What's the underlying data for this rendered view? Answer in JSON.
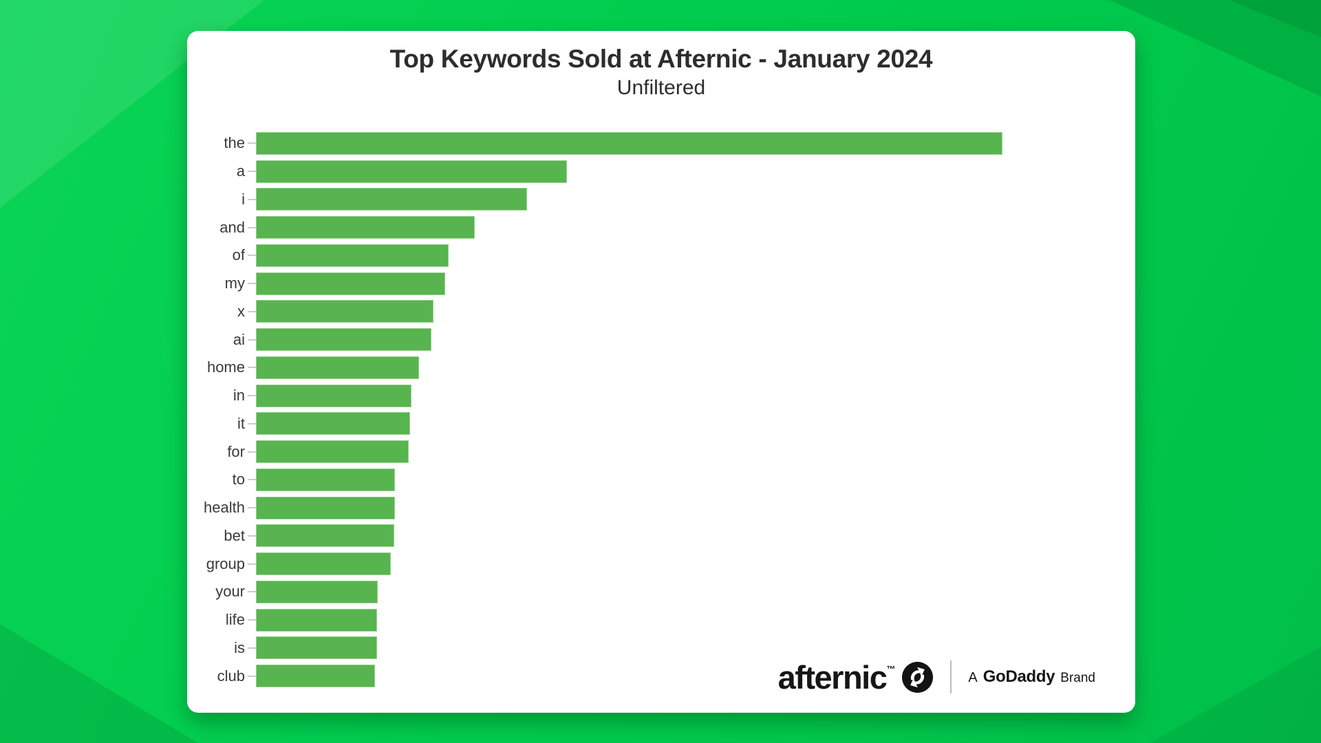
{
  "chart_data": {
    "type": "bar",
    "orientation": "horizontal",
    "title": "Top Keywords Sold at Afternic - January 2024",
    "subtitle": "Unfiltered",
    "categories": [
      "the",
      "a",
      "i",
      "and",
      "of",
      "my",
      "x",
      "ai",
      "home",
      "in",
      "it",
      "for",
      "to",
      "health",
      "bet",
      "group",
      "your",
      "life",
      "is",
      "club"
    ],
    "values": [
      100,
      41.7,
      36.3,
      29.3,
      25.8,
      25.3,
      23.8,
      23.5,
      21.8,
      20.8,
      20.6,
      20.5,
      18.6,
      18.6,
      18.5,
      18.1,
      16.3,
      16.2,
      16.2,
      15.9
    ],
    "value_unit": "percent_of_longest_bar (no numeric axis shown in image)",
    "bar_color": "#57b44e",
    "bar_edge_color": "#96d28e",
    "grid": false,
    "legend": false,
    "x_axis_ticks_shown": false
  },
  "footer_logo": {
    "brand": "afternic",
    "trademark": "™",
    "icon": "afternic-swap-icon",
    "tagline_prefix": "A",
    "tagline_brand": "GoDaddy",
    "tagline_suffix": "Brand"
  },
  "colors": {
    "background_green": "#00cb4c",
    "card_background": "#ffffff",
    "title_text": "#2d2d2d",
    "label_text": "#3a3a3a",
    "tick_gray": "#cccccc",
    "logo_black": "#161616"
  }
}
